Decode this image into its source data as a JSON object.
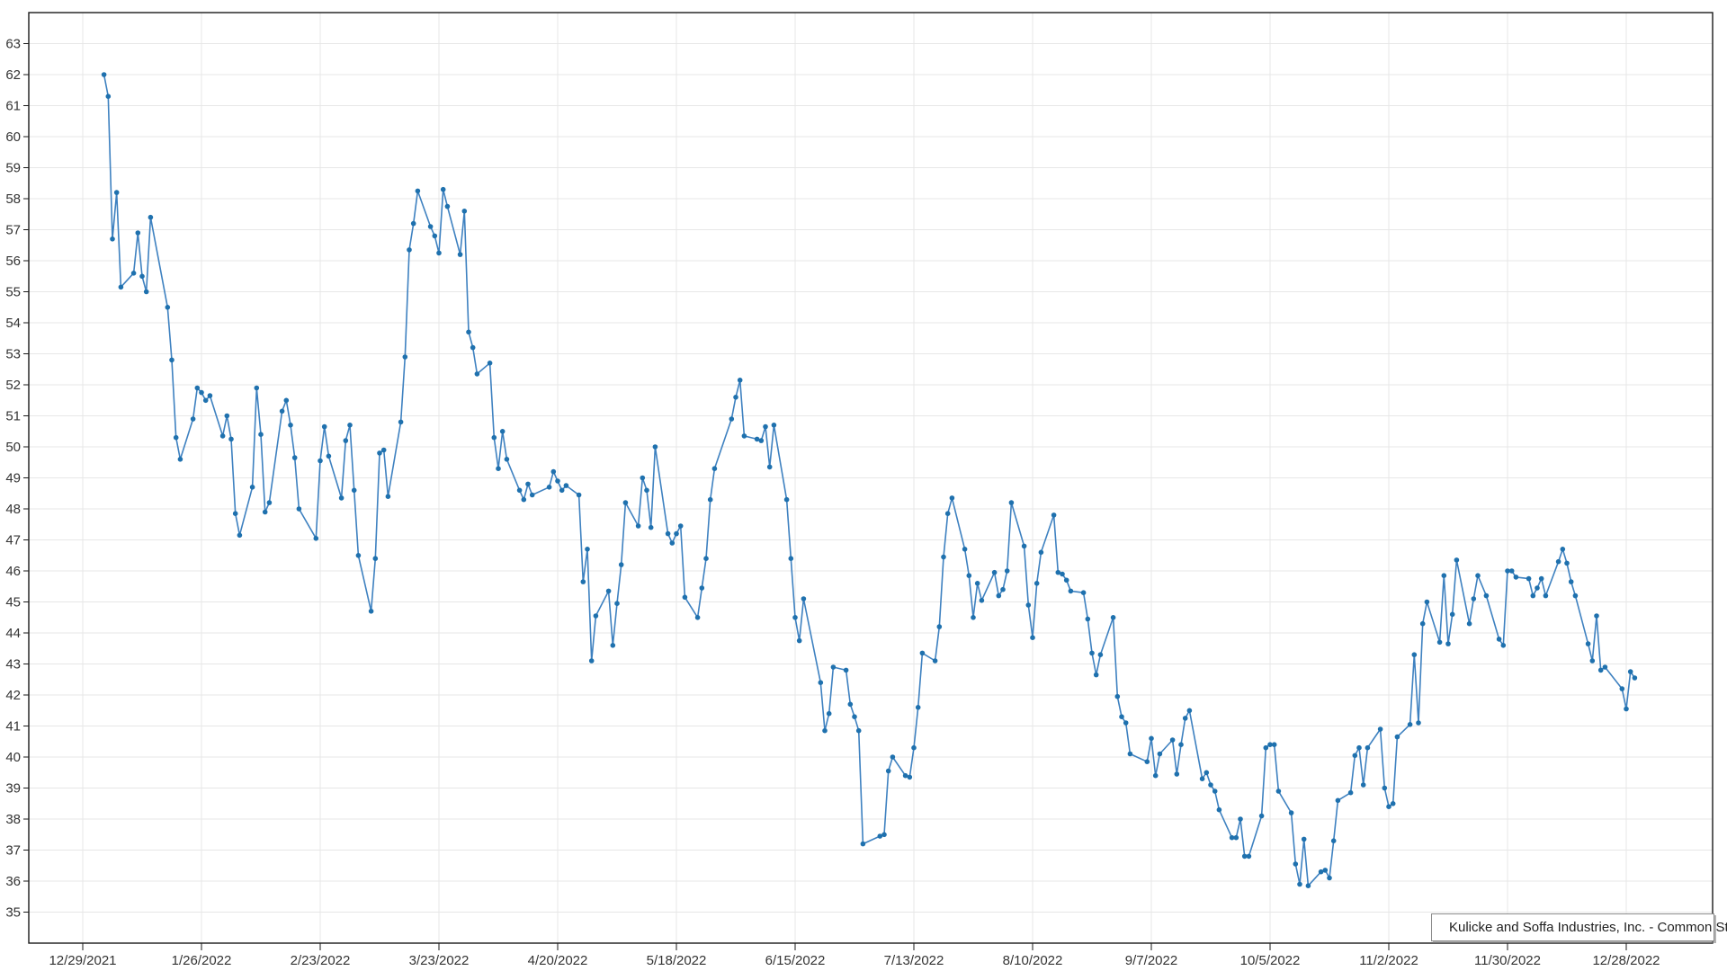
{
  "legend": {
    "label": "Kulicke and Soffa Industries, Inc. - Common Stock"
  },
  "colors": {
    "background": "#ffffff",
    "line": "#3e81c0",
    "marker": "#1f71ae",
    "grid": "#e7e7e7",
    "axis": "#1a1a1a",
    "tick_label": "#333333",
    "legend_border": "#8a8a8a",
    "legend_text": "#1f1f1f"
  },
  "chart_data": {
    "type": "line",
    "title": "",
    "xlabel": "",
    "ylabel": "",
    "legend_position": "bottom-right",
    "grid": true,
    "markers": true,
    "series_name": "Kulicke and Soffa Industries, Inc. - Common Stock",
    "ylim": [
      34,
      64
    ],
    "y_tick_labels": [
      35,
      36,
      37,
      38,
      39,
      40,
      41,
      42,
      43,
      44,
      45,
      46,
      47,
      48,
      49,
      50,
      51,
      52,
      53,
      54,
      55,
      56,
      57,
      58,
      59,
      60,
      61,
      62,
      63
    ],
    "x_axis_start": "2021-12-29",
    "x_tick_interval_days": 28,
    "x_tick_labels": [
      "12/29/2021",
      "1/26/2022",
      "2/23/2022",
      "3/23/2022",
      "4/20/2022",
      "5/18/2022",
      "6/15/2022",
      "7/13/2022",
      "8/10/2022",
      "9/7/2022",
      "10/5/2022",
      "11/2/2022",
      "11/30/2022",
      "12/28/2022"
    ],
    "dates": [
      "2022-01-03",
      "2022-01-04",
      "2022-01-05",
      "2022-01-06",
      "2022-01-07",
      "2022-01-10",
      "2022-01-11",
      "2022-01-12",
      "2022-01-13",
      "2022-01-14",
      "2022-01-18",
      "2022-01-19",
      "2022-01-20",
      "2022-01-21",
      "2022-01-24",
      "2022-01-25",
      "2022-01-26",
      "2022-01-27",
      "2022-01-28",
      "2022-01-31",
      "2022-02-01",
      "2022-02-02",
      "2022-02-03",
      "2022-02-04",
      "2022-02-07",
      "2022-02-08",
      "2022-02-09",
      "2022-02-10",
      "2022-02-11",
      "2022-02-14",
      "2022-02-15",
      "2022-02-16",
      "2022-02-17",
      "2022-02-18",
      "2022-02-22",
      "2022-02-23",
      "2022-02-24",
      "2022-02-25",
      "2022-02-28",
      "2022-03-01",
      "2022-03-02",
      "2022-03-03",
      "2022-03-04",
      "2022-03-07",
      "2022-03-08",
      "2022-03-09",
      "2022-03-10",
      "2022-03-11",
      "2022-03-14",
      "2022-03-15",
      "2022-03-16",
      "2022-03-17",
      "2022-03-18",
      "2022-03-21",
      "2022-03-22",
      "2022-03-23",
      "2022-03-24",
      "2022-03-25",
      "2022-03-28",
      "2022-03-29",
      "2022-03-30",
      "2022-03-31",
      "2022-04-01",
      "2022-04-04",
      "2022-04-05",
      "2022-04-06",
      "2022-04-07",
      "2022-04-08",
      "2022-04-11",
      "2022-04-12",
      "2022-04-13",
      "2022-04-14",
      "2022-04-18",
      "2022-04-19",
      "2022-04-20",
      "2022-04-21",
      "2022-04-22",
      "2022-04-25",
      "2022-04-26",
      "2022-04-27",
      "2022-04-28",
      "2022-04-29",
      "2022-05-02",
      "2022-05-03",
      "2022-05-04",
      "2022-05-05",
      "2022-05-06",
      "2022-05-09",
      "2022-05-10",
      "2022-05-11",
      "2022-05-12",
      "2022-05-13",
      "2022-05-16",
      "2022-05-17",
      "2022-05-18",
      "2022-05-19",
      "2022-05-20",
      "2022-05-23",
      "2022-05-24",
      "2022-05-25",
      "2022-05-26",
      "2022-05-27",
      "2022-05-31",
      "2022-06-01",
      "2022-06-02",
      "2022-06-03",
      "2022-06-06",
      "2022-06-07",
      "2022-06-08",
      "2022-06-09",
      "2022-06-10",
      "2022-06-13",
      "2022-06-14",
      "2022-06-15",
      "2022-06-16",
      "2022-06-17",
      "2022-06-21",
      "2022-06-22",
      "2022-06-23",
      "2022-06-24",
      "2022-06-27",
      "2022-06-28",
      "2022-06-29",
      "2022-06-30",
      "2022-07-01",
      "2022-07-05",
      "2022-07-06",
      "2022-07-07",
      "2022-07-08",
      "2022-07-11",
      "2022-07-12",
      "2022-07-13",
      "2022-07-14",
      "2022-07-15",
      "2022-07-18",
      "2022-07-19",
      "2022-07-20",
      "2022-07-21",
      "2022-07-22",
      "2022-07-25",
      "2022-07-26",
      "2022-07-27",
      "2022-07-28",
      "2022-07-29",
      "2022-08-01",
      "2022-08-02",
      "2022-08-03",
      "2022-08-04",
      "2022-08-05",
      "2022-08-08",
      "2022-08-09",
      "2022-08-10",
      "2022-08-11",
      "2022-08-12",
      "2022-08-15",
      "2022-08-16",
      "2022-08-17",
      "2022-08-18",
      "2022-08-19",
      "2022-08-22",
      "2022-08-23",
      "2022-08-24",
      "2022-08-25",
      "2022-08-26",
      "2022-08-29",
      "2022-08-30",
      "2022-08-31",
      "2022-09-01",
      "2022-09-02",
      "2022-09-06",
      "2022-09-07",
      "2022-09-08",
      "2022-09-09",
      "2022-09-12",
      "2022-09-13",
      "2022-09-14",
      "2022-09-15",
      "2022-09-16",
      "2022-09-19",
      "2022-09-20",
      "2022-09-21",
      "2022-09-22",
      "2022-09-23",
      "2022-09-26",
      "2022-09-27",
      "2022-09-28",
      "2022-09-29",
      "2022-09-30",
      "2022-10-03",
      "2022-10-04",
      "2022-10-05",
      "2022-10-06",
      "2022-10-07",
      "2022-10-10",
      "2022-10-11",
      "2022-10-12",
      "2022-10-13",
      "2022-10-14",
      "2022-10-17",
      "2022-10-18",
      "2022-10-19",
      "2022-10-20",
      "2022-10-21",
      "2022-10-24",
      "2022-10-25",
      "2022-10-26",
      "2022-10-27",
      "2022-10-28",
      "2022-10-31",
      "2022-11-01",
      "2022-11-02",
      "2022-11-03",
      "2022-11-04",
      "2022-11-07",
      "2022-11-08",
      "2022-11-09",
      "2022-11-10",
      "2022-11-11",
      "2022-11-14",
      "2022-11-15",
      "2022-11-16",
      "2022-11-17",
      "2022-11-18",
      "2022-11-21",
      "2022-11-22",
      "2022-11-23",
      "2022-11-25",
      "2022-11-28",
      "2022-11-29",
      "2022-11-30",
      "2022-12-01",
      "2022-12-02",
      "2022-12-05",
      "2022-12-06",
      "2022-12-07",
      "2022-12-08",
      "2022-12-09",
      "2022-12-12",
      "2022-12-13",
      "2022-12-14",
      "2022-12-15",
      "2022-12-16",
      "2022-12-19",
      "2022-12-20",
      "2022-12-21",
      "2022-12-22",
      "2022-12-23",
      "2022-12-27",
      "2022-12-28",
      "2022-12-29",
      "2022-12-30"
    ],
    "values": [
      62.0,
      61.3,
      56.7,
      58.2,
      55.15,
      55.6,
      56.9,
      55.5,
      55.0,
      57.4,
      54.5,
      52.8,
      50.3,
      49.6,
      50.9,
      51.9,
      51.75,
      51.5,
      51.65,
      50.35,
      51.0,
      50.25,
      47.85,
      47.15,
      48.7,
      51.9,
      50.4,
      47.9,
      48.2,
      51.15,
      51.5,
      50.7,
      49.65,
      48.0,
      47.05,
      49.55,
      50.65,
      49.7,
      48.35,
      50.2,
      50.7,
      48.6,
      46.5,
      44.7,
      46.4,
      49.8,
      49.9,
      48.4,
      50.8,
      52.9,
      56.35,
      57.2,
      58.25,
      57.1,
      56.8,
      56.25,
      58.3,
      57.75,
      56.2,
      57.6,
      53.7,
      53.2,
      52.35,
      52.7,
      50.3,
      49.3,
      50.5,
      49.6,
      48.6,
      48.3,
      48.8,
      48.45,
      48.7,
      49.2,
      48.9,
      48.6,
      48.75,
      48.45,
      45.65,
      46.7,
      43.1,
      44.55,
      45.35,
      43.6,
      44.95,
      46.2,
      48.2,
      47.45,
      49.0,
      48.6,
      47.4,
      50.0,
      47.2,
      46.9,
      47.2,
      47.45,
      45.15,
      44.5,
      45.45,
      46.4,
      48.3,
      49.3,
      50.9,
      51.6,
      52.15,
      50.35,
      50.25,
      50.2,
      50.65,
      49.35,
      50.7,
      48.3,
      46.4,
      44.5,
      43.75,
      45.1,
      42.4,
      40.85,
      41.4,
      42.9,
      42.8,
      41.7,
      41.3,
      40.85,
      37.2,
      37.45,
      37.5,
      39.55,
      40.0,
      39.4,
      39.35,
      40.3,
      41.6,
      43.35,
      43.1,
      44.2,
      46.45,
      47.85,
      48.35,
      46.7,
      45.85,
      44.5,
      45.6,
      45.05,
      45.95,
      45.2,
      45.4,
      46.0,
      48.2,
      46.8,
      44.9,
      43.85,
      45.6,
      46.6,
      47.8,
      45.95,
      45.9,
      45.7,
      45.35,
      45.3,
      44.45,
      43.35,
      42.65,
      43.3,
      44.5,
      41.95,
      41.3,
      41.1,
      40.1,
      39.85,
      40.6,
      39.4,
      40.1,
      40.55,
      39.45,
      40.4,
      41.25,
      41.5,
      39.3,
      39.5,
      39.1,
      38.9,
      38.3,
      37.4,
      37.4,
      38.0,
      36.8,
      36.8,
      38.1,
      40.3,
      40.4,
      40.4,
      38.9,
      38.2,
      36.55,
      35.9,
      37.35,
      35.85,
      36.3,
      36.35,
      36.1,
      37.3,
      38.6,
      38.85,
      40.05,
      40.3,
      39.1,
      40.3,
      40.9,
      39.0,
      38.4,
      38.5,
      40.65,
      41.05,
      43.3,
      41.1,
      44.3,
      45.0,
      43.7,
      45.85,
      43.65,
      44.6,
      46.35,
      44.3,
      45.1,
      45.85,
      45.2,
      43.8,
      43.6,
      46.0,
      46.0,
      45.8,
      45.75,
      45.2,
      45.45,
      45.75,
      45.2,
      46.3,
      46.7,
      46.25,
      45.65,
      45.2,
      43.65,
      43.1,
      44.55,
      42.8,
      42.9,
      42.2,
      41.55,
      42.75,
      42.55
    ]
  }
}
